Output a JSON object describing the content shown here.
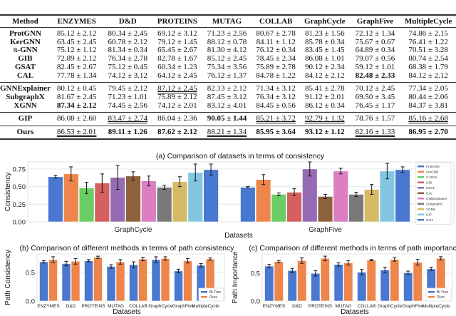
{
  "table": {
    "headers": [
      "Method",
      "ENZYMES",
      "D&D",
      "PROTEINS",
      "MUTAG",
      "COLLAB",
      "GraphCycle",
      "GraphFive",
      "MultipleCycle"
    ],
    "groups": [
      [
        {
          "method": "ProtGNN",
          "cells": [
            {
              "v": "85.12 ± 2.12"
            },
            {
              "v": "80.34 ± 2.45"
            },
            {
              "v": "69.12 ± 3.12"
            },
            {
              "v": "71.23 ± 2.56"
            },
            {
              "v": "80.67 ± 2.78"
            },
            {
              "v": "81.23 ± 1.56"
            },
            {
              "v": "72.12 ± 1.34"
            },
            {
              "v": "74.86 ± 2.15"
            }
          ]
        },
        {
          "method": "KerGNN",
          "cells": [
            {
              "v": "63.45 ± 2.45"
            },
            {
              "v": "60.78 ± 2.12"
            },
            {
              "v": "79.12 ± 1.45"
            },
            {
              "v": "88.12 ± 0.78"
            },
            {
              "v": "84.11 ± 1.12"
            },
            {
              "v": "85.78 ± 0.34"
            },
            {
              "v": "75.67 ± 0.67"
            },
            {
              "v": "76.41 ± 1.22"
            }
          ]
        },
        {
          "method": "π-GNN",
          "cells": [
            {
              "v": "75.12 ± 1.12"
            },
            {
              "v": "81.34 ± 0.34"
            },
            {
              "v": "65.45 ± 2.67"
            },
            {
              "v": "81.30 ± 4.12"
            },
            {
              "v": "76.12 ± 0.34"
            },
            {
              "v": "83.45 ± 1.45"
            },
            {
              "v": "64.89 ± 0.34"
            },
            {
              "v": "70.51 ± 3.28"
            }
          ]
        },
        {
          "method": "GIB",
          "cells": [
            {
              "v": "72.89 ± 2.12"
            },
            {
              "v": "76.34 ± 2.78"
            },
            {
              "v": "82.78 ± 1.67"
            },
            {
              "v": "85.12 ± 2.45"
            },
            {
              "v": "78.45 ± 2.34"
            },
            {
              "v": "86.08 ± 1.01"
            },
            {
              "v": "79.07 ± 0.56"
            },
            {
              "v": "80.74 ± 2.54"
            }
          ]
        },
        {
          "method": "GSAT",
          "cells": [
            {
              "v": "82.45 ± 2.67"
            },
            {
              "v": "75.12 ± 0.45"
            },
            {
              "v": "60.34 ± 1.23"
            },
            {
              "v": "75.34 ± 3.56"
            },
            {
              "v": "75.89 ± 2.78"
            },
            {
              "v": "90.12 ± 2.34"
            },
            {
              "v": "59.12 ± 1.01"
            },
            {
              "v": "68.38 ± 1.79"
            }
          ]
        },
        {
          "method": "CAL",
          "cells": [
            {
              "v": "77.78 ± 1.34"
            },
            {
              "v": "74.12 ± 3.12"
            },
            {
              "v": "64.12 ± 2.45"
            },
            {
              "v": "76.12 ± 1.37"
            },
            {
              "v": "84.78 ± 1.22"
            },
            {
              "v": "84.12 ± 2.12"
            },
            {
              "v": "82.48 ± 2.33",
              "b": true
            },
            {
              "v": "84.12 ± 2.12"
            }
          ]
        }
      ],
      [
        {
          "method": "GNNExplainer",
          "cells": [
            {
              "v": "80.12 ± 0.45"
            },
            {
              "v": "79.45 ± 2.12"
            },
            {
              "v": "87.12 ± 2.45",
              "u": true
            },
            {
              "v": "82.13 ± 2.12"
            },
            {
              "v": "71.34 ± 3.12"
            },
            {
              "v": "85.41 ± 2.78"
            },
            {
              "v": "70.12 ± 2.45"
            },
            {
              "v": "77.34 ± 2.05"
            }
          ]
        },
        {
          "method": "SubgraphX",
          "cells": [
            {
              "v": "81.67 ± 2.45"
            },
            {
              "v": "71.23 ± 1.01"
            },
            {
              "v": "75.89 ± 2.12"
            },
            {
              "v": "87.45 ± 3.12"
            },
            {
              "v": "76.34 ± 3.12"
            },
            {
              "v": "91.12 ± 2.01"
            },
            {
              "v": "69.50 ± 3.45"
            },
            {
              "v": "80.44 ± 2.06"
            }
          ]
        },
        {
          "method": "XGNN",
          "cells": [
            {
              "v": "87.34 ± 2.12",
              "b": true
            },
            {
              "v": "74.45 ± 2.56"
            },
            {
              "v": "74.12 ± 2.01"
            },
            {
              "v": "83.12 ± 4.01"
            },
            {
              "v": "84.45 ± 0.56"
            },
            {
              "v": "86.12 ± 0.34"
            },
            {
              "v": "76.45 ± 1.17"
            },
            {
              "v": "84.37 ± 3.81"
            }
          ]
        }
      ],
      [
        {
          "method": "GIP",
          "cells": [
            {
              "v": "86.08 ± 2.60"
            },
            {
              "v": "83.47 ± 2.74",
              "u": true
            },
            {
              "v": "86.04 ± 2.36"
            },
            {
              "v": "90.05 ± 1.44",
              "b": true
            },
            {
              "v": "85.21 ± 3.72",
              "u": true
            },
            {
              "v": "92.79 ± 1.32",
              "u": true
            },
            {
              "v": "78.76 ± 1.57"
            },
            {
              "v": "85.16 ± 2.68",
              "u": true
            }
          ]
        }
      ],
      [
        {
          "method": "Ours",
          "cells": [
            {
              "v": "86.53 ± 2.01",
              "u": true
            },
            {
              "v": "89.11 ± 1.26",
              "b": true
            },
            {
              "v": "87.62 ± 2.12",
              "b": true
            },
            {
              "v": "88.21 ± 1.34",
              "u": true
            },
            {
              "v": "85.95 ± 3.64",
              "b": true
            },
            {
              "v": "93.12 ± 1.12",
              "b": true
            },
            {
              "v": "82.16 ± 1.33",
              "u": true
            },
            {
              "v": "86.95 ± 2.70",
              "b": true
            }
          ]
        }
      ]
    ]
  },
  "chart_data": [
    {
      "type": "bar",
      "title": "(a) Comparison of datasets in terms of consistency",
      "xlabel": "Datasets",
      "ylabel": "Consistency",
      "ylim": [
        0,
        0.85
      ],
      "yticks": [
        "0.00",
        "0.25",
        "0.50",
        "0.75"
      ],
      "grid": true,
      "legend": "right",
      "categories": [
        "GraphCycle",
        "GraphFive"
      ],
      "series": [
        {
          "name": "ProtGNN",
          "color": "#4878d0",
          "values": [
            0.64,
            0.49
          ],
          "errors": [
            0.02,
            0.01
          ]
        },
        {
          "name": "KerGNN",
          "color": "#ee854a",
          "values": [
            0.68,
            0.6
          ],
          "errors": [
            0.1,
            0.07
          ]
        },
        {
          "name": "π-GNN",
          "color": "#6acc64",
          "values": [
            0.48,
            0.39
          ],
          "errors": [
            0.08,
            0.02
          ]
        },
        {
          "name": "GIB",
          "color": "#d65f5f",
          "values": [
            0.55,
            0.42
          ],
          "errors": [
            0.13,
            0.05
          ]
        },
        {
          "name": "GSAT",
          "color": "#956cb4",
          "values": [
            0.63,
            0.75
          ],
          "errors": [
            0.17,
            0.1
          ]
        },
        {
          "name": "CAL",
          "color": "#8c613c",
          "values": [
            0.65,
            0.36
          ],
          "errors": [
            0.06,
            0.03
          ]
        },
        {
          "name": "GNNExplainer",
          "color": "#dc7ec0",
          "values": [
            0.58,
            0.72
          ],
          "errors": [
            0.07,
            0.04
          ]
        },
        {
          "name": "SubgraphX",
          "color": "#797979",
          "values": [
            0.49,
            0.39
          ],
          "errors": [
            0.03,
            0.03
          ]
        },
        {
          "name": "XGNN",
          "color": "#d5bb67",
          "values": [
            0.57,
            0.46
          ],
          "errors": [
            0.07,
            0.07
          ]
        },
        {
          "name": "GIP",
          "color": "#82c6e2",
          "values": [
            0.7,
            0.72
          ],
          "errors": [
            0.12,
            0.11
          ]
        },
        {
          "name": "Ours",
          "color": "#4878d0",
          "values": [
            0.74,
            0.74
          ],
          "errors": [
            0.08,
            0.04
          ]
        }
      ]
    },
    {
      "type": "bar",
      "title": "(b) Comparison of different methods in terms of path consistency",
      "xlabel": "Datasets",
      "ylabel": "Path Consistency",
      "ylim": [
        0,
        0.83
      ],
      "yticks": [
        "0.0",
        "0.5"
      ],
      "grid": true,
      "legend": "bottom-right",
      "categories": [
        "ENZYMES",
        "D&D",
        "PROTEINS",
        "MUTAG",
        "COLLAB",
        "GraphCycle",
        "GraphFive",
        "MultipleCycle"
      ],
      "series": [
        {
          "name": "Bi-Tree",
          "color": "#4878d0",
          "values": [
            0.69,
            0.66,
            0.71,
            0.61,
            0.64,
            0.73,
            0.53,
            0.63
          ],
          "errors": [
            0.02,
            0.04,
            0.02,
            0.03,
            0.05,
            0.05,
            0.03,
            0.03
          ]
        },
        {
          "name": "Ours",
          "color": "#ee854a",
          "values": [
            0.73,
            0.7,
            0.77,
            0.69,
            0.74,
            0.75,
            0.71,
            0.74
          ],
          "errors": [
            0.05,
            0.05,
            0.02,
            0.04,
            0.03,
            0.03,
            0.04,
            0.02
          ]
        }
      ]
    },
    {
      "type": "bar",
      "title": "(c) Comparison of different methods in terms of path importance",
      "xlabel": "Datasets",
      "ylabel": "Path Importance",
      "ylim": [
        0,
        0.85
      ],
      "yticks": [
        "0.0",
        "0.5"
      ],
      "grid": true,
      "legend": "bottom-right",
      "categories": [
        "ENZYMES",
        "D&D",
        "PROTEINS",
        "MUTAG",
        "COLLAB",
        "GraphCycle",
        "GraphFive",
        "MultipleCycle"
      ],
      "series": [
        {
          "name": "Bi-Tree",
          "color": "#4878d0",
          "values": [
            0.63,
            0.55,
            0.5,
            0.66,
            0.52,
            0.56,
            0.51,
            0.58
          ],
          "errors": [
            0.03,
            0.04,
            0.05,
            0.03,
            0.05,
            0.05,
            0.03,
            0.03
          ]
        },
        {
          "name": "Ours",
          "color": "#ee854a",
          "values": [
            0.71,
            0.73,
            0.77,
            0.69,
            0.74,
            0.75,
            0.7,
            0.77
          ],
          "errors": [
            0.02,
            0.05,
            0.04,
            0.04,
            0.01,
            0.03,
            0.05,
            0.03
          ]
        }
      ]
    }
  ]
}
